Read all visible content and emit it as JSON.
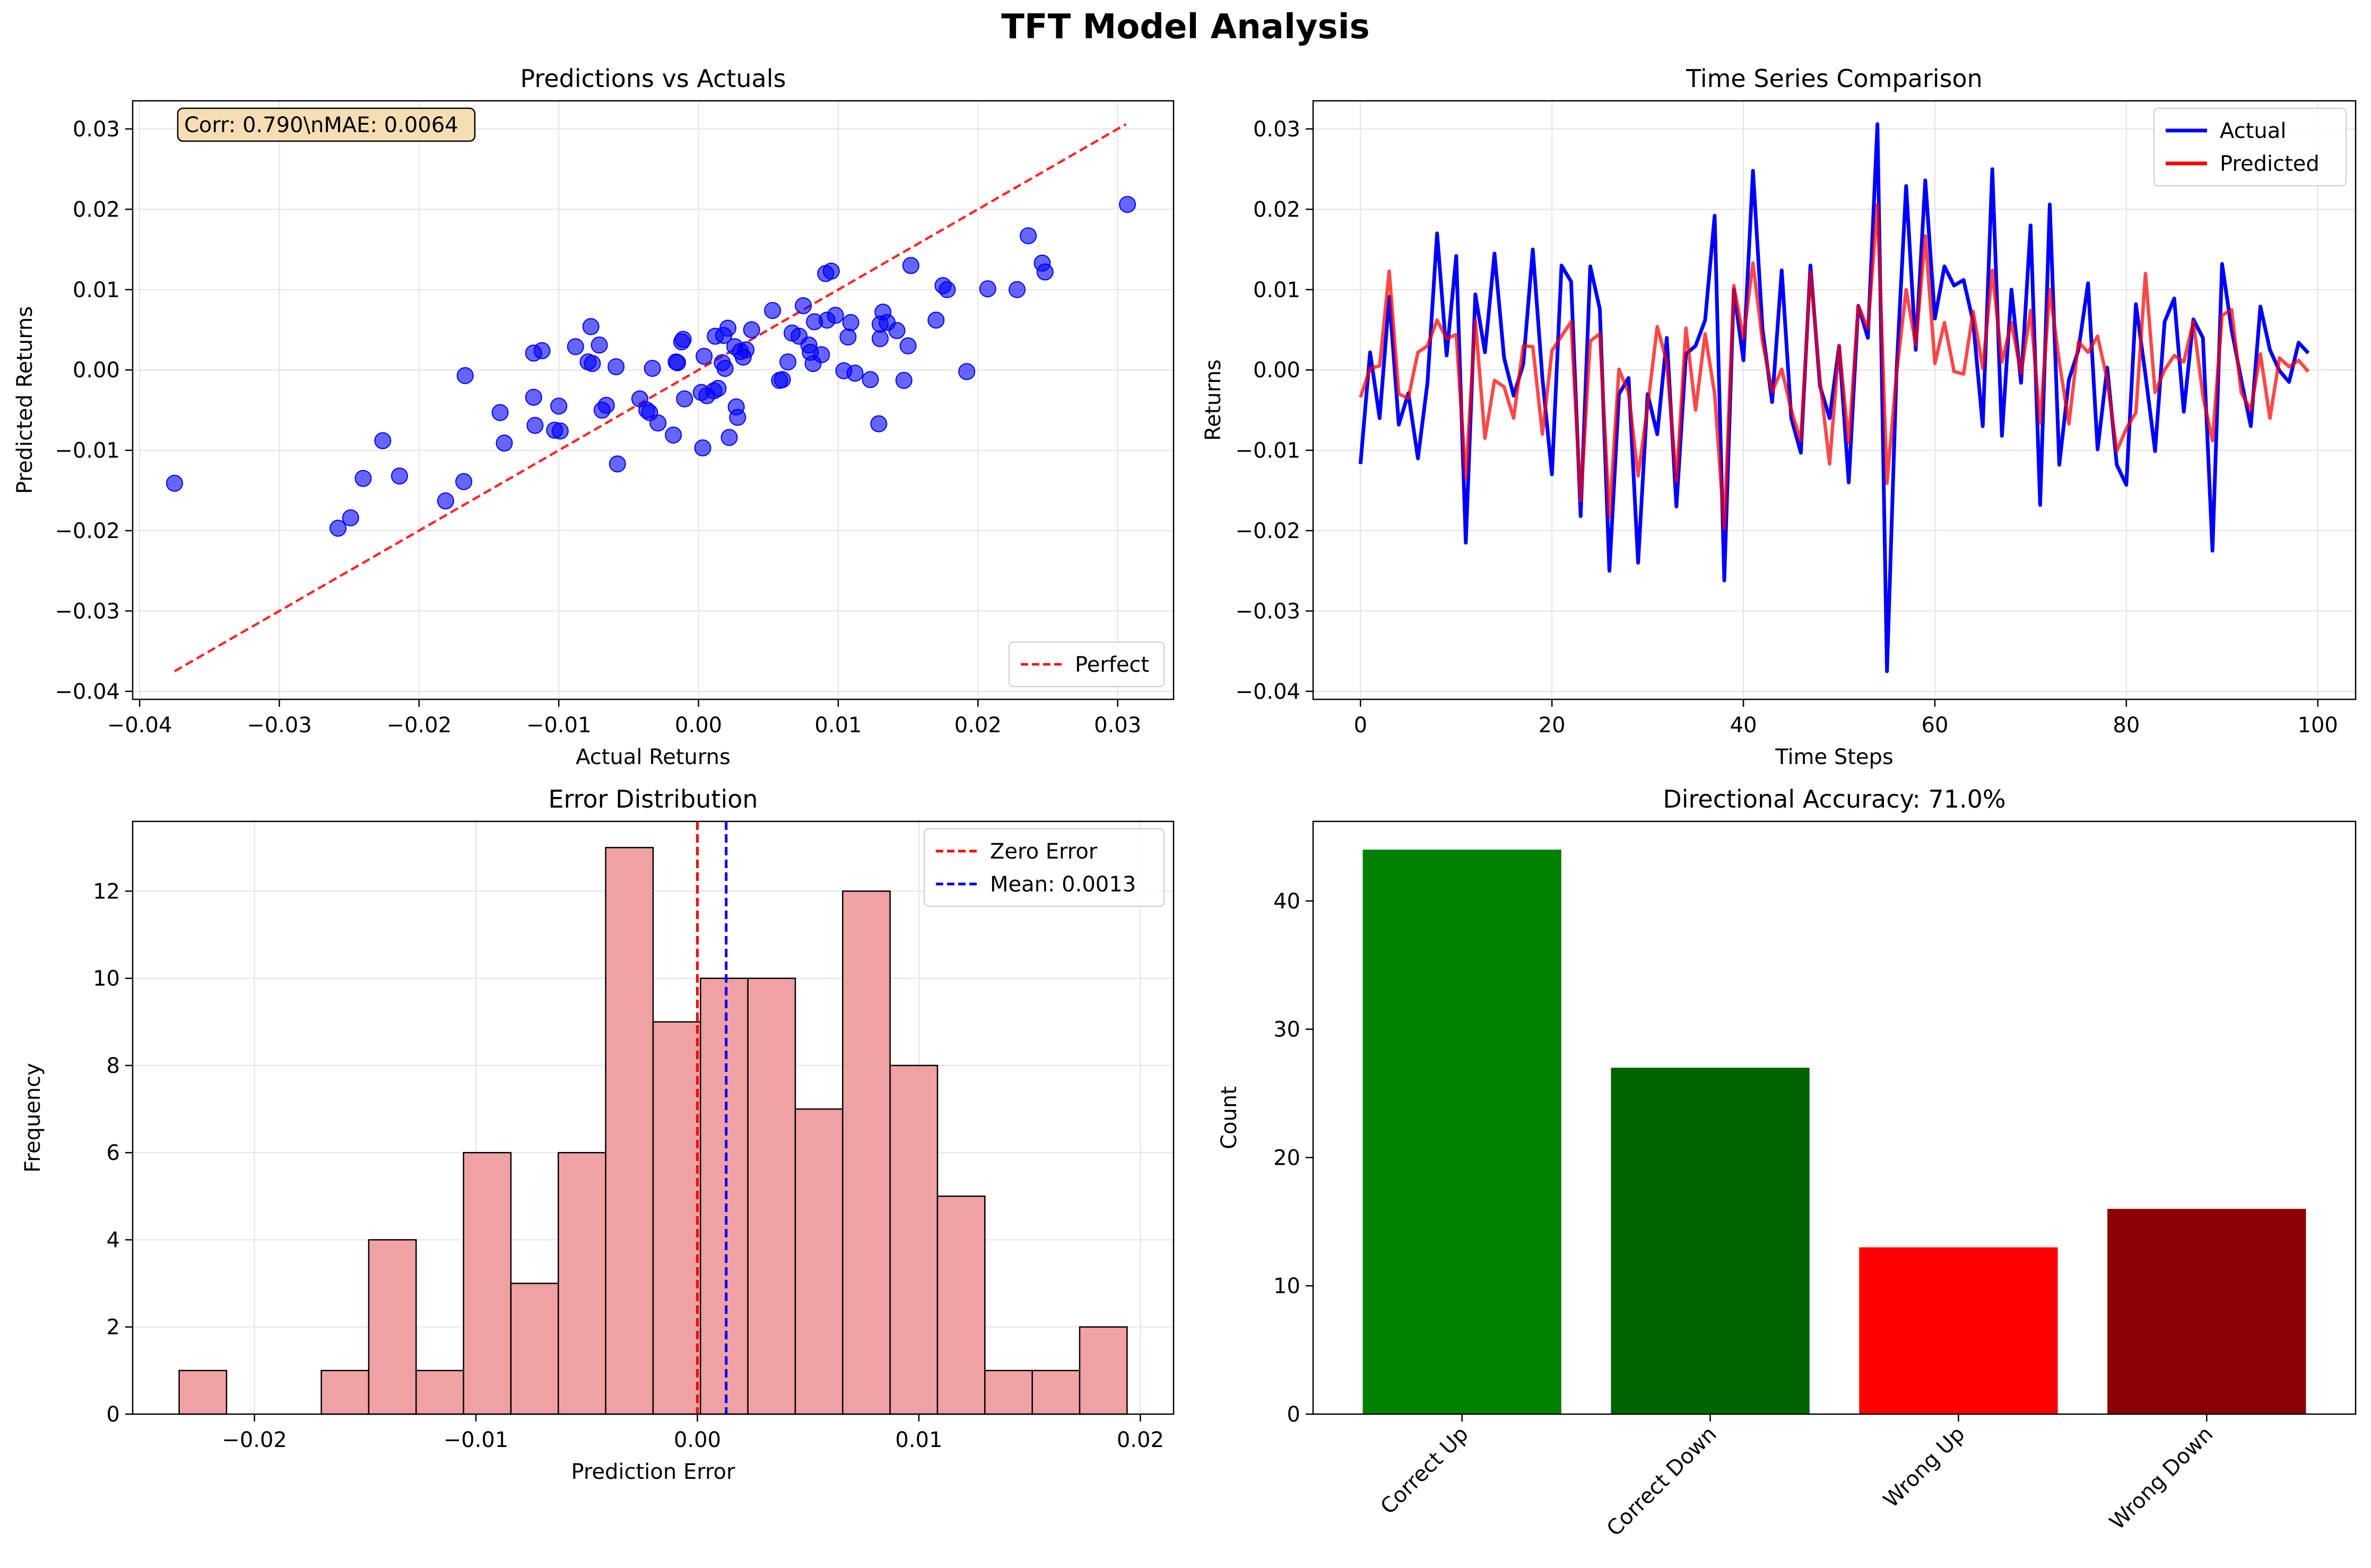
{
  "suptitle": "TFT Model Analysis",
  "chart_data": [
    {
      "id": "scatter",
      "type": "scatter",
      "title": "Predictions vs Actuals",
      "xlabel": "Actual Returns",
      "ylabel": "Predicted Returns",
      "xlim": [
        -0.0405,
        0.034
      ],
      "ylim": [
        -0.041,
        0.0335
      ],
      "xticks": [
        -0.04,
        -0.03,
        -0.02,
        -0.01,
        0.0,
        0.01,
        0.02,
        0.03
      ],
      "xtick_labels": [
        "−0.04",
        "−0.03",
        "−0.02",
        "−0.01",
        "0.00",
        "0.01",
        "0.02",
        "0.03"
      ],
      "yticks": [
        -0.04,
        -0.03,
        -0.02,
        -0.01,
        0.0,
        0.01,
        0.02,
        0.03
      ],
      "ytick_labels": [
        "−0.04",
        "−0.03",
        "−0.02",
        "−0.01",
        "0.00",
        "0.01",
        "0.02",
        "0.03"
      ],
      "grid": true,
      "annotation": "Corr: 0.790\\nMAE: 0.0064",
      "legend_position": "lower-right",
      "perfect_line": {
        "label": "Perfect",
        "x": [
          -0.0375,
          0.0306
        ],
        "y": [
          -0.0375,
          0.0306
        ],
        "color": "#ff0000"
      },
      "point_color": "#0000ff",
      "points": [
        [
          -0.0375,
          -0.0141
        ],
        [
          -0.0258,
          -0.0197
        ],
        [
          -0.0249,
          -0.0184
        ],
        [
          -0.024,
          -0.0135
        ],
        [
          -0.0226,
          -0.0088
        ],
        [
          -0.0214,
          -0.0132
        ],
        [
          -0.0181,
          -0.0163
        ],
        [
          -0.0168,
          -0.0139
        ],
        [
          -0.0167,
          -0.0007
        ],
        [
          -0.0142,
          -0.0053
        ],
        [
          -0.0139,
          -0.0091
        ],
        [
          -0.0118,
          0.0021
        ],
        [
          -0.0118,
          -0.0034
        ],
        [
          -0.0117,
          -0.0069
        ],
        [
          -0.0112,
          0.0024
        ],
        [
          -0.0103,
          -0.0075
        ],
        [
          -0.01,
          -0.0045
        ],
        [
          -0.0099,
          -0.0076
        ],
        [
          -0.0088,
          0.0029
        ],
        [
          -0.0079,
          0.001
        ],
        [
          -0.0077,
          0.0054
        ],
        [
          -0.0076,
          0.0008
        ],
        [
          -0.0071,
          0.0031
        ],
        [
          -0.0069,
          -0.005
        ],
        [
          -0.0066,
          -0.0044
        ],
        [
          -0.0059,
          0.0004
        ],
        [
          -0.0058,
          -0.0117
        ],
        [
          -0.0042,
          -0.0036
        ],
        [
          -0.0037,
          -0.005
        ],
        [
          -0.0035,
          -0.0053
        ],
        [
          -0.0033,
          0.0002
        ],
        [
          -0.0029,
          -0.0066
        ],
        [
          -0.0018,
          -0.0081
        ],
        [
          -0.0016,
          0.001
        ],
        [
          -0.0015,
          0.0009
        ],
        [
          -0.0012,
          0.0035
        ],
        [
          -0.0011,
          0.0038
        ],
        [
          -0.001,
          -0.0036
        ],
        [
          0.0002,
          -0.0028
        ],
        [
          0.0003,
          -0.0097
        ],
        [
          0.0004,
          0.0017
        ],
        [
          0.0006,
          -0.0032
        ],
        [
          0.0011,
          -0.0026
        ],
        [
          0.0012,
          0.0042
        ],
        [
          0.0014,
          -0.0023
        ],
        [
          0.0017,
          0.0009
        ],
        [
          0.0018,
          0.0043
        ],
        [
          0.0019,
          0.0002
        ],
        [
          0.0021,
          0.0052
        ],
        [
          0.0022,
          -0.0084
        ],
        [
          0.0026,
          0.0029
        ],
        [
          0.0027,
          -0.0046
        ],
        [
          0.0028,
          -0.0059
        ],
        [
          0.003,
          0.0023
        ],
        [
          0.0032,
          0.0016
        ],
        [
          0.0034,
          0.0025
        ],
        [
          0.0038,
          0.005
        ],
        [
          0.0053,
          0.0074
        ],
        [
          0.0058,
          -0.0013
        ],
        [
          0.006,
          -0.0012
        ],
        [
          0.0064,
          0.001
        ],
        [
          0.0067,
          0.0046
        ],
        [
          0.0072,
          0.0042
        ],
        [
          0.0075,
          0.008
        ],
        [
          0.0079,
          0.0031
        ],
        [
          0.008,
          0.0022
        ],
        [
          0.0082,
          0.0008
        ],
        [
          0.0083,
          0.006
        ],
        [
          0.0088,
          0.0019
        ],
        [
          0.0091,
          0.012
        ],
        [
          0.0092,
          0.0062
        ],
        [
          0.0095,
          0.0123
        ],
        [
          0.0098,
          0.0068
        ],
        [
          0.0104,
          -0.0001
        ],
        [
          0.0107,
          0.0041
        ],
        [
          0.0109,
          0.0059
        ],
        [
          0.0112,
          -0.0004
        ],
        [
          0.0123,
          -0.0012
        ],
        [
          0.0129,
          -0.0067
        ],
        [
          0.013,
          0.0057
        ],
        [
          0.013,
          0.0039
        ],
        [
          0.0132,
          0.0072
        ],
        [
          0.0135,
          0.0059
        ],
        [
          0.0142,
          0.0049
        ],
        [
          0.0147,
          -0.0013
        ],
        [
          0.015,
          0.003
        ],
        [
          0.0152,
          0.013
        ],
        [
          0.017,
          0.0062
        ],
        [
          0.0175,
          0.0105
        ],
        [
          0.0178,
          0.01
        ],
        [
          0.0192,
          -0.0002
        ],
        [
          0.0207,
          0.0101
        ],
        [
          0.0228,
          0.01
        ],
        [
          0.0236,
          0.0167
        ],
        [
          0.0246,
          0.0133
        ],
        [
          0.0248,
          0.0122
        ],
        [
          0.0307,
          0.0206
        ]
      ]
    },
    {
      "id": "timeseries",
      "type": "line",
      "title": "Time Series Comparison",
      "xlabel": "Time Steps",
      "ylabel": "Returns",
      "xlim": [
        -4.95,
        103.95
      ],
      "ylim": [
        -0.041,
        0.0335
      ],
      "xticks": [
        0,
        20,
        40,
        60,
        80,
        100
      ],
      "xtick_labels": [
        "0",
        "20",
        "40",
        "60",
        "80",
        "100"
      ],
      "yticks": [
        -0.04,
        -0.03,
        -0.02,
        -0.01,
        0.0,
        0.01,
        0.02,
        0.03
      ],
      "ytick_labels": [
        "−0.04",
        "−0.03",
        "−0.02",
        "−0.01",
        "0.00",
        "0.01",
        "0.02",
        "0.03"
      ],
      "grid": true,
      "legend_position": "upper-right",
      "series": [
        {
          "name": "Actual",
          "color": "#0000ff",
          "values": [
            -0.0117,
            0.0022,
            -0.006,
            0.0091,
            -0.0068,
            -0.0029,
            -0.011,
            -0.0016,
            0.017,
            0.0018,
            0.0142,
            -0.0215,
            0.0094,
            0.0022,
            0.0145,
            0.0015,
            -0.0032,
            0.0007,
            0.015,
            -0.001,
            -0.013,
            0.013,
            0.011,
            -0.0182,
            0.0129,
            0.0076,
            -0.025,
            -0.003,
            -0.001,
            -0.024,
            -0.003,
            -0.008,
            0.004,
            -0.017,
            0.002,
            0.003,
            0.0062,
            0.0192,
            -0.0262,
            0.01,
            0.0012,
            0.0248,
            0.005,
            -0.004,
            0.0124,
            -0.006,
            -0.0103,
            0.013,
            -0.002,
            -0.006,
            0.003,
            -0.014,
            0.008,
            0.004,
            0.0306,
            -0.0375,
            0.0,
            0.0229,
            0.0025,
            0.0236,
            0.0064,
            0.0129,
            0.0105,
            0.0112,
            0.006,
            -0.007,
            0.025,
            -0.0082,
            0.01,
            -0.0016,
            0.018,
            -0.0168,
            0.0206,
            -0.0118,
            -0.0012,
            0.0025,
            0.0108,
            -0.0099,
            0.0003,
            -0.0118,
            -0.0143,
            0.0082,
            -0.0006,
            -0.0101,
            0.006,
            0.0089,
            -0.0052,
            0.0063,
            0.004,
            -0.0225,
            0.0132,
            0.005,
            -0.0012,
            -0.007,
            0.0079,
            0.0025,
            -0.0001,
            -0.0015,
            0.0034,
            0.0021
          ]
        },
        {
          "name": "Predicted",
          "color": "#ff0000",
          "values": [
            -0.0034,
            0.0002,
            0.0005,
            0.0123,
            -0.003,
            -0.0035,
            0.0022,
            0.003,
            0.0062,
            0.0039,
            0.0044,
            -0.0135,
            0.0062,
            -0.0085,
            -0.0013,
            -0.0021,
            -0.006,
            0.003,
            0.0029,
            -0.008,
            0.0024,
            0.0042,
            0.006,
            -0.0163,
            0.0036,
            0.0045,
            -0.0183,
            0.0001,
            -0.0028,
            -0.0132,
            -0.0045,
            0.0054,
            0.001,
            -0.0139,
            0.0052,
            -0.005,
            0.0045,
            -0.003,
            -0.0197,
            0.0105,
            0.004,
            0.0133,
            0.0035,
            -0.0027,
            0.0001,
            -0.005,
            -0.0088,
            0.0122,
            -0.0013,
            -0.0117,
            0.003,
            -0.0091,
            0.008,
            0.0052,
            0.0206,
            -0.0141,
            -0.0004,
            0.01,
            0.0031,
            0.0167,
            0.0008,
            0.0059,
            -0.0002,
            -0.0005,
            0.0073,
            0.0002,
            0.0124,
            0.001,
            0.0059,
            -0.0004,
            0.0074,
            -0.0066,
            0.01,
            0.001,
            -0.0067,
            0.0035,
            0.0022,
            0.0042,
            -0.0012,
            -0.0101,
            -0.0073,
            -0.0053,
            0.012,
            -0.0028,
            0.0,
            0.0018,
            0.001,
            0.006,
            -0.0032,
            -0.0088,
            0.0068,
            0.0075,
            -0.0028,
            -0.005,
            0.002,
            -0.006,
            0.0015,
            0.0004,
            0.0012,
            -0.0002
          ]
        }
      ]
    },
    {
      "id": "histogram",
      "type": "bar",
      "title": "Error Distribution",
      "xlabel": "Prediction Error",
      "ylabel": "Frequency",
      "xlim": [
        -0.0255,
        0.0215
      ],
      "ylim": [
        0,
        13.6
      ],
      "xticks": [
        -0.02,
        -0.01,
        0.0,
        0.01,
        0.02
      ],
      "xtick_labels": [
        "−0.02",
        "−0.01",
        "0.00",
        "0.01",
        "0.02"
      ],
      "yticks": [
        0,
        2,
        4,
        6,
        8,
        10,
        12
      ],
      "ytick_labels": [
        "0",
        "2",
        "4",
        "6",
        "8",
        "10",
        "12"
      ],
      "grid": true,
      "legend_position": "upper-right",
      "bin_start": -0.0234,
      "bin_width": 0.00214,
      "counts": [
        1,
        0,
        0,
        1,
        4,
        1,
        6,
        3,
        6,
        13,
        9,
        10,
        10,
        7,
        12,
        8,
        5,
        1,
        1,
        2
      ],
      "bar_color": "#f0a1a4",
      "lines": [
        {
          "label": "Zero Error",
          "x": 0.0,
          "color": "#ff0000"
        },
        {
          "label": "Mean: 0.0013",
          "x": 0.0013,
          "color": "#0000ff"
        }
      ]
    },
    {
      "id": "directional",
      "type": "bar",
      "title": "Directional Accuracy: 71.0%",
      "xlabel": "",
      "ylabel": "Count",
      "ylim": [
        0,
        46.2
      ],
      "yticks": [
        0,
        10,
        20,
        30,
        40
      ],
      "ytick_labels": [
        "0",
        "10",
        "20",
        "30",
        "40"
      ],
      "grid": false,
      "categories": [
        "Correct Up",
        "Correct Down",
        "Wrong Up",
        "Wrong Down"
      ],
      "values": [
        44,
        27,
        13,
        16
      ],
      "colors": [
        "#008000",
        "#006400",
        "#ff0000",
        "#8b0000"
      ]
    }
  ]
}
